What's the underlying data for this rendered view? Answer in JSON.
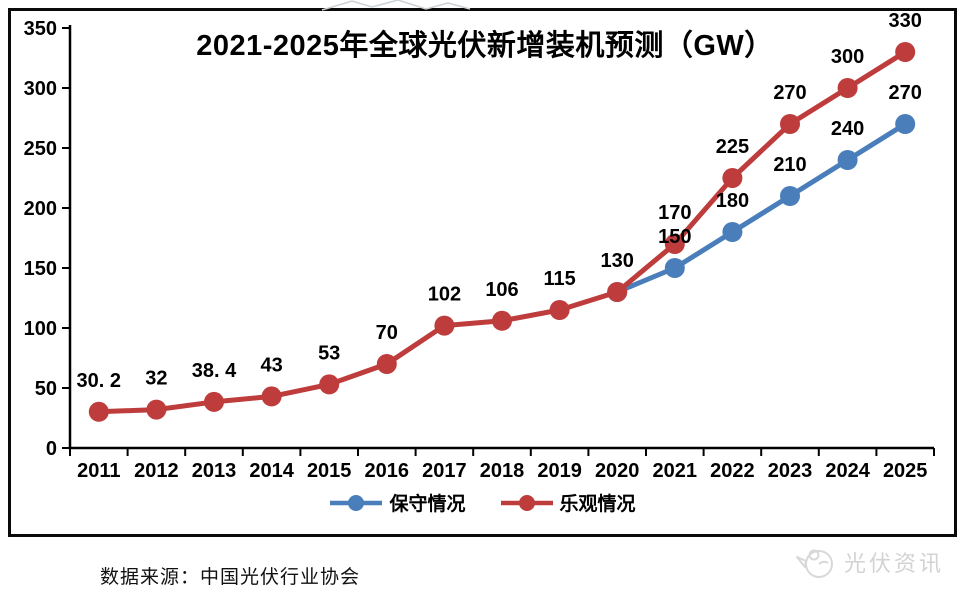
{
  "chart_data": {
    "type": "line",
    "title": "2021-2025年全球光伏新增装机预测（GW）",
    "xlabel": "",
    "ylabel": "",
    "unit": "GW",
    "grid": "off",
    "legend_position": "bottom",
    "x_categories": [
      "2011",
      "2012",
      "2013",
      "2014",
      "2015",
      "2016",
      "2017",
      "2018",
      "2019",
      "2020",
      "2021",
      "2022",
      "2023",
      "2024",
      "2025"
    ],
    "y_axis": {
      "min": 0,
      "max": 350,
      "step": 50
    },
    "y_ticks": [
      "0",
      "50",
      "100",
      "150",
      "200",
      "250",
      "300",
      "350"
    ],
    "series": [
      {
        "name": "保守情况",
        "color": "#4A7EBB",
        "x": [
          "2020",
          "2021",
          "2022",
          "2023",
          "2024",
          "2025"
        ],
        "values": [
          130,
          150,
          180,
          210,
          240,
          270
        ],
        "point_labels": [
          "",
          "150",
          "180",
          "210",
          "240",
          "270"
        ]
      },
      {
        "name": "乐观情况",
        "color": "#BE3C3C",
        "x": [
          "2011",
          "2012",
          "2013",
          "2014",
          "2015",
          "2016",
          "2017",
          "2018",
          "2019",
          "2020",
          "2021",
          "2022",
          "2023",
          "2024",
          "2025"
        ],
        "values": [
          30.2,
          32,
          38.4,
          43,
          53,
          70,
          102,
          106,
          115,
          130,
          170,
          225,
          270,
          300,
          330
        ],
        "point_labels": [
          "30. 2",
          "32",
          "38. 4",
          "43",
          "53",
          "70",
          "102",
          "106",
          "115",
          "130",
          "170",
          "225",
          "270",
          "300",
          "330"
        ]
      }
    ]
  },
  "footer": {
    "source": "数据来源：中国光伏行业协会",
    "logo_text": "光伏资讯"
  }
}
